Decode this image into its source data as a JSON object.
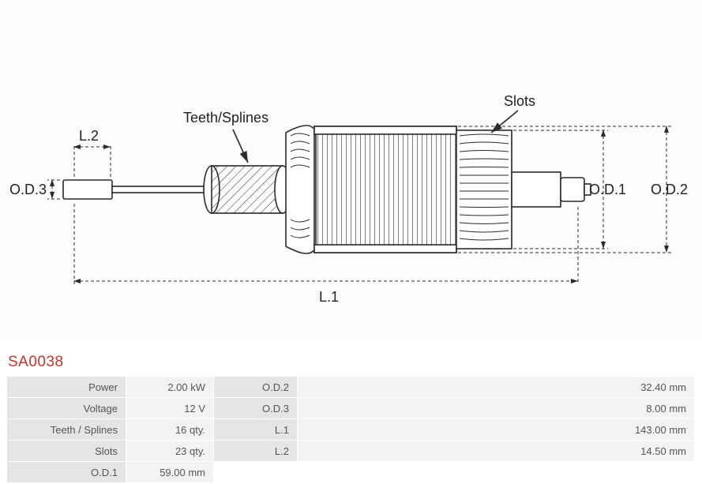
{
  "partCode": "SA0038",
  "diagram": {
    "labels": {
      "teethSplines": "Teeth/Splines",
      "slots": "Slots",
      "L1": "L.1",
      "L2": "L.2",
      "OD1": "O.D.1",
      "OD2": "O.D.2",
      "OD3": "O.D.3"
    },
    "colors": {
      "stroke": "#2b2b2b",
      "fill_light": "#ffffff",
      "fill_hatched": "#ededed",
      "text": "#222222",
      "background": "#ffffff"
    },
    "font": {
      "family": "Segoe UI, Arial, sans-serif",
      "label_size": 18
    }
  },
  "specs": {
    "rows": [
      {
        "label1": "Power",
        "value1": "2.00 kW",
        "label2": "O.D.2",
        "value2": "32.40 mm"
      },
      {
        "label1": "Voltage",
        "value1": "12 V",
        "label2": "O.D.3",
        "value2": "8.00 mm"
      },
      {
        "label1": "Teeth / Splines",
        "value1": "16 qty.",
        "label2": "L.1",
        "value2": "143.00 mm"
      },
      {
        "label1": "Slots",
        "value1": "23 qty.",
        "label2": "L.2",
        "value2": "14.50 mm"
      },
      {
        "label1": "O.D.1",
        "value1": "59.00 mm",
        "label2": "",
        "value2": ""
      }
    ],
    "colors": {
      "header_bg": "#e5e5e5",
      "value_bg": "#f3f3f3",
      "text": "#555555"
    }
  }
}
